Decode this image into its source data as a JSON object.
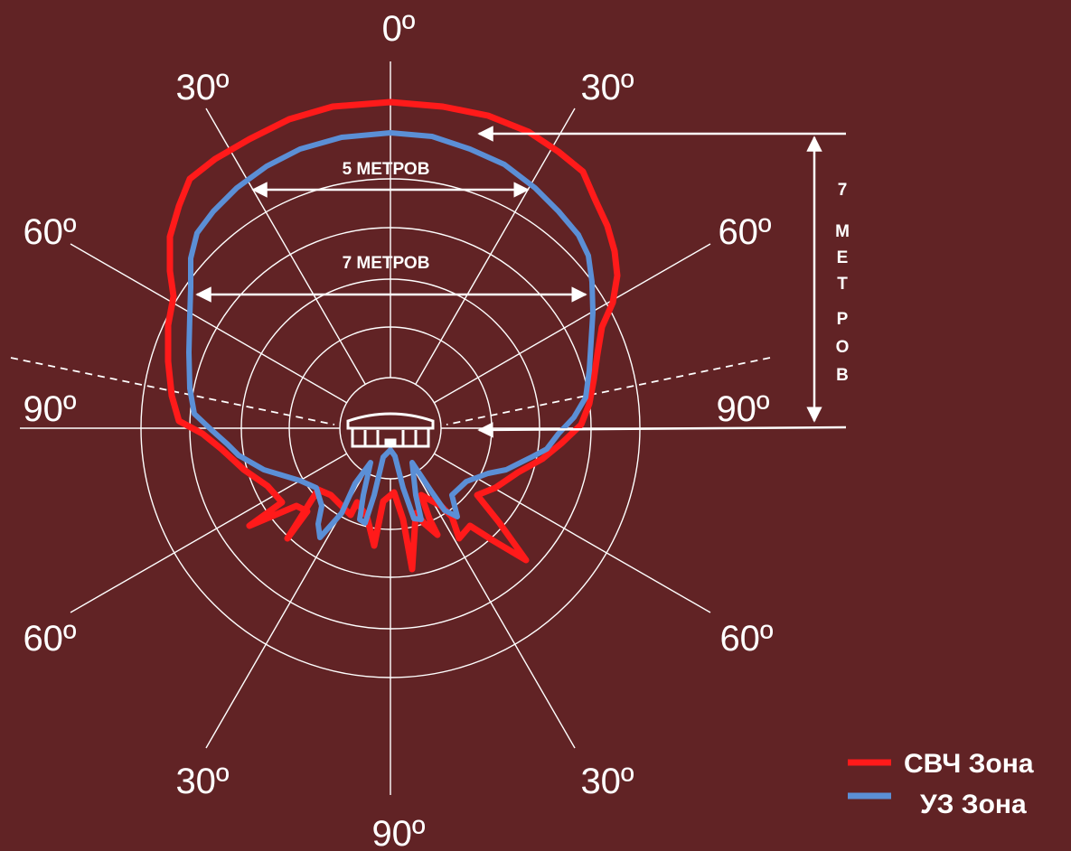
{
  "colors": {
    "background": "#612325",
    "grid": "#ffffff",
    "microwave": "#ff1a1a",
    "ultrasonic": "#5b8fd6"
  },
  "angles": {
    "top": "0º",
    "upper_left": "30º",
    "upper_right": "30º",
    "mid_left": "60º",
    "mid_right": "60º",
    "side_left": "90º",
    "side_right": "90º",
    "lower_mid_left": "60º",
    "lower_mid_right": "60º",
    "lower_left": "30º",
    "lower_right": "30º",
    "bottom": "90º"
  },
  "dimensions": {
    "width_5m": "5 МЕТРОВ",
    "width_7m": "7 МЕТРОВ",
    "height_letters": [
      "7",
      "М",
      "Е",
      "Т",
      "Р",
      "О",
      "В"
    ]
  },
  "legend": {
    "microwave_label": "СВЧ Зона",
    "ultrasonic_label": "УЗ Зона"
  },
  "icons": {
    "detector": "motion-detector-icon"
  }
}
